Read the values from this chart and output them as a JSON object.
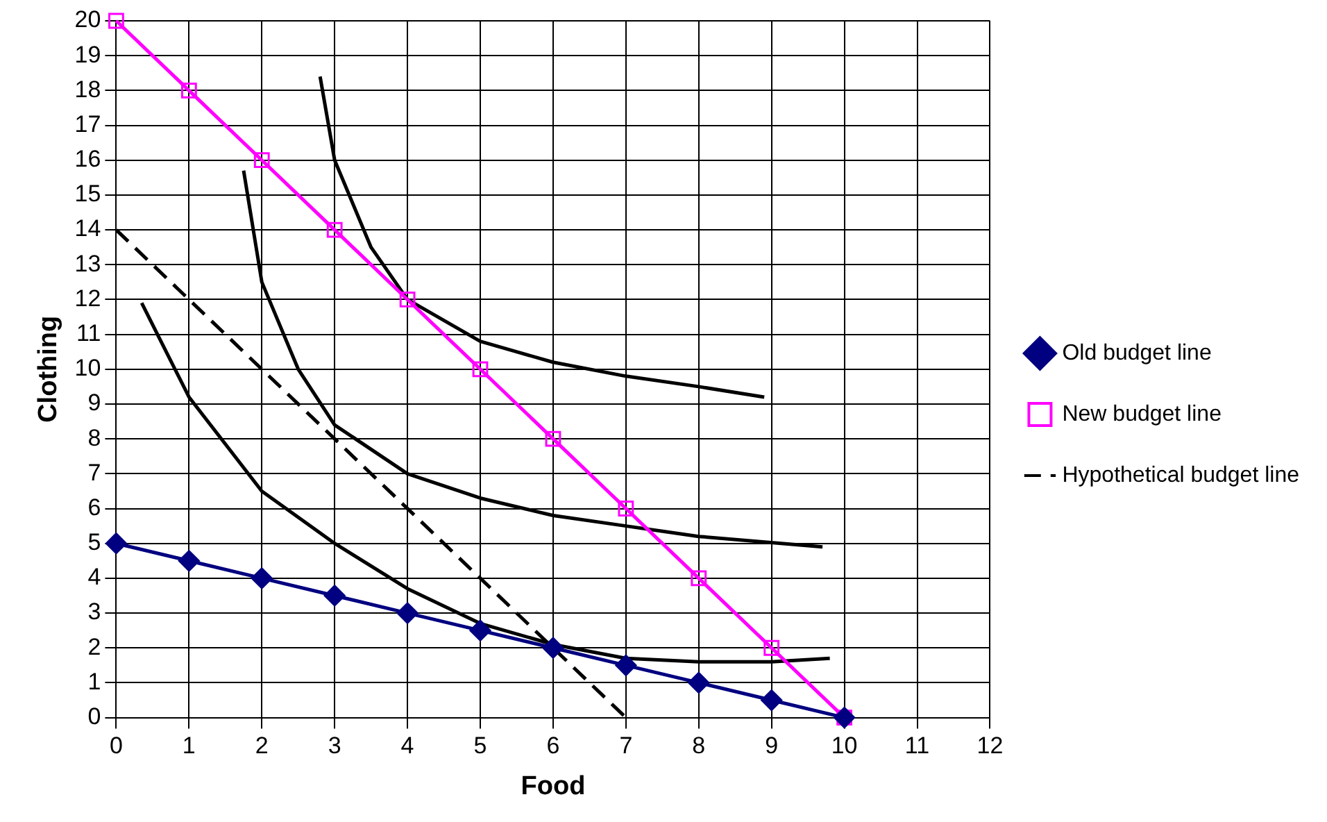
{
  "chart_data": {
    "type": "line",
    "xlabel": "Food",
    "ylabel": "Clothing",
    "xlim": [
      0,
      12
    ],
    "ylim": [
      0,
      20
    ],
    "xticks": [
      0,
      1,
      2,
      3,
      4,
      5,
      6,
      7,
      8,
      9,
      10,
      11,
      12
    ],
    "yticks": [
      0,
      1,
      2,
      3,
      4,
      5,
      6,
      7,
      8,
      9,
      10,
      11,
      12,
      13,
      14,
      15,
      16,
      17,
      18,
      19,
      20
    ],
    "grid": true,
    "legend": "right",
    "series": [
      {
        "name": "Old budget line",
        "color": "#000080",
        "marker": "diamond",
        "x": [
          0,
          1,
          2,
          3,
          4,
          5,
          6,
          7,
          8,
          9,
          10
        ],
        "values": [
          5,
          4.5,
          4,
          3.5,
          3,
          2.5,
          2,
          1.5,
          1,
          0.5,
          0
        ]
      },
      {
        "name": "New budget line",
        "color": "#ff00ff",
        "marker": "square",
        "x": [
          0,
          1,
          2,
          3,
          4,
          5,
          6,
          7,
          8,
          9,
          10
        ],
        "values": [
          20,
          18,
          16,
          14,
          12,
          10,
          8,
          6,
          4,
          2,
          0
        ]
      },
      {
        "name": "Hypothetical budget line",
        "color": "#000000",
        "marker": "none",
        "line_style": "dashed",
        "x": [
          0,
          7
        ],
        "values": [
          14,
          0
        ]
      },
      {
        "color": "#000000",
        "marker": "none",
        "x": [
          2.8,
          3,
          3.5,
          4,
          5,
          6,
          7,
          8,
          8.9
        ],
        "values": [
          18.4,
          16,
          13.5,
          12,
          10.8,
          10.2,
          9.8,
          9.5,
          9.2
        ]
      },
      {
        "color": "#000000",
        "marker": "none",
        "x": [
          1.75,
          2,
          2.5,
          3,
          4,
          5,
          6,
          7,
          8,
          9.7
        ],
        "values": [
          15.7,
          12.5,
          10,
          8.4,
          7,
          6.3,
          5.8,
          5.5,
          5.2,
          4.9
        ]
      },
      {
        "color": "#000000",
        "marker": "none",
        "x": [
          0.35,
          1,
          2,
          3,
          4,
          5,
          6,
          7,
          8,
          9,
          9.8
        ],
        "values": [
          11.9,
          9.2,
          6.5,
          5,
          3.7,
          2.7,
          2.1,
          1.7,
          1.6,
          1.6,
          1.7
        ]
      }
    ]
  }
}
